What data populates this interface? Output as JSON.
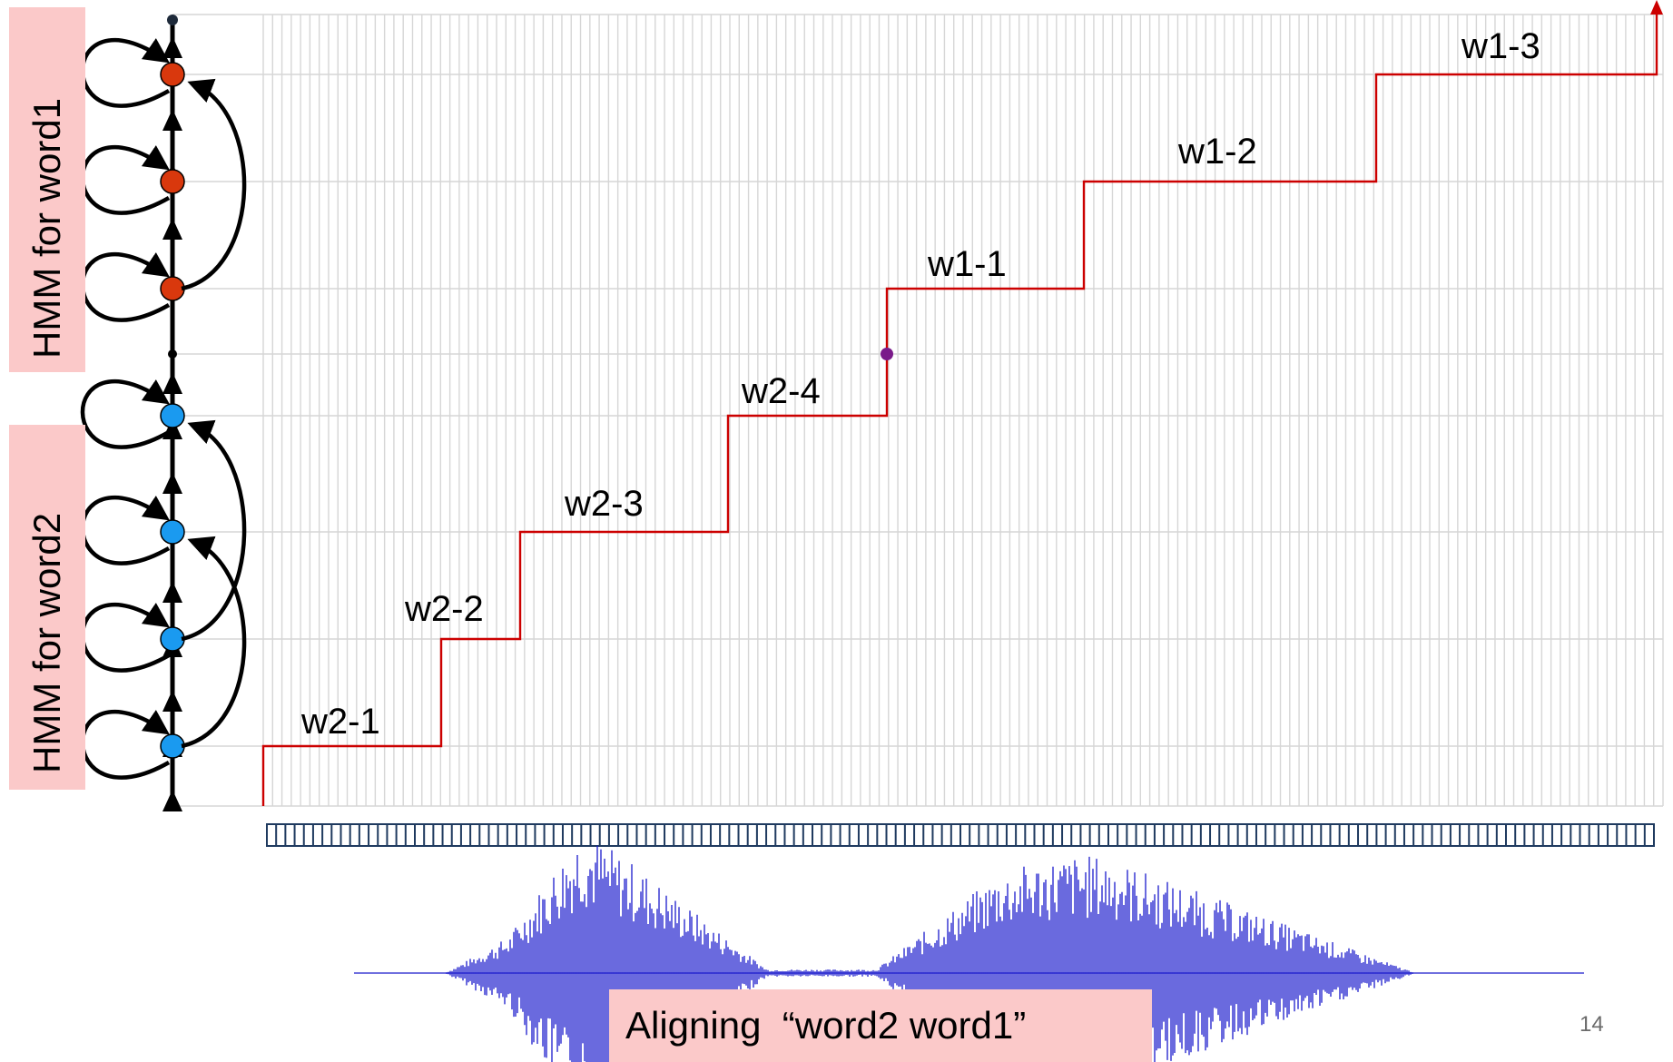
{
  "hmm_labels": {
    "word1": "HMM for word1",
    "word2": "HMM for word2"
  },
  "segments": [
    {
      "label": "w2-1"
    },
    {
      "label": "w2-2"
    },
    {
      "label": "w2-3"
    },
    {
      "label": "w2-4"
    },
    {
      "label": "w1-1"
    },
    {
      "label": "w1-2"
    },
    {
      "label": "w1-3"
    }
  ],
  "caption": "Aligning  “word2 word1”",
  "page_number": "14",
  "colors": {
    "word1_state": "#d9380d",
    "word2_state": "#1a9af0",
    "path": "#cc0000",
    "junction": "#7a1a8a",
    "waveform": "#1a1acc",
    "label_bg": "#fbc9c9"
  }
}
